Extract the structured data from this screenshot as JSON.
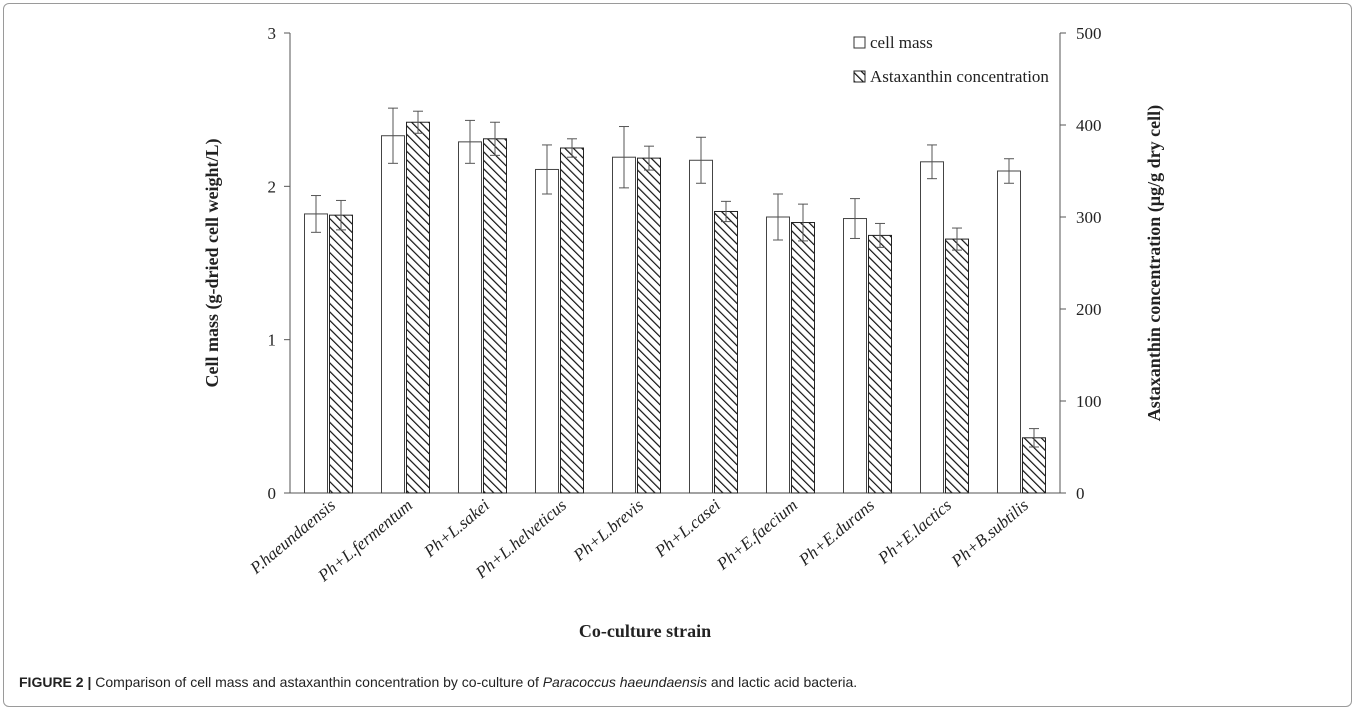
{
  "caption": {
    "label": "FIGURE 2 |",
    "text_before": " Comparison of cell mass and astaxanthin concentration by co-culture of ",
    "species": "Paracoccus haeundaensis",
    "text_after": " and lactic acid bacteria."
  },
  "chart_data": {
    "type": "bar",
    "title": "",
    "xlabel": "Co-culture strain",
    "ylabel": "Cell mass (g-dried cell weight/L)",
    "y2label": "Astaxanthin concentration  (µg/g dry cell)",
    "categories": [
      "P.haeundaensis",
      "Ph+L.fermentum",
      "Ph+L.sakei",
      "Ph+L.helveticus",
      "Ph+L.brevis",
      "Ph+L.casei",
      "Ph+E.faecium",
      "Ph+E.durans",
      "Ph+E.lactics",
      "Ph+B.subtilis"
    ],
    "ylim": [
      0,
      3
    ],
    "y2lim": [
      0,
      500
    ],
    "y_ticks": [
      "0",
      "1",
      "2",
      "3"
    ],
    "y2_ticks": [
      "0",
      "100",
      "200",
      "300",
      "400",
      "500"
    ],
    "legend_position": "top-right",
    "grid": false,
    "series": [
      {
        "name": "cell mass",
        "axis": "left",
        "fill": "white",
        "values": [
          1.82,
          2.33,
          2.29,
          2.11,
          2.19,
          2.17,
          1.8,
          1.79,
          2.16,
          2.1
        ],
        "errors": [
          0.12,
          0.18,
          0.14,
          0.16,
          0.2,
          0.15,
          0.15,
          0.13,
          0.11,
          0.08
        ]
      },
      {
        "name": "Astaxanthin concentration",
        "axis": "right",
        "fill": "hatched",
        "values": [
          302,
          403,
          385,
          375,
          364,
          306,
          294,
          280,
          276,
          60
        ],
        "errors": [
          16,
          12,
          18,
          10,
          13,
          11,
          20,
          13,
          12,
          10
        ]
      }
    ]
  }
}
